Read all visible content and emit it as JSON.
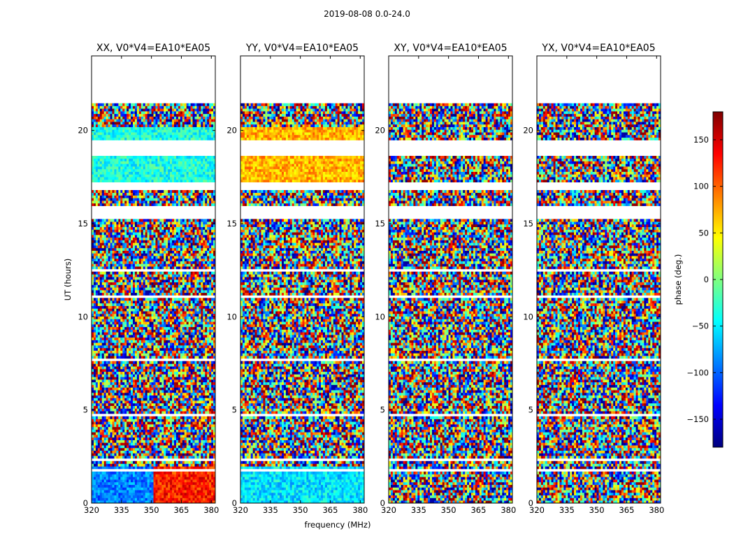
{
  "figure": {
    "suptitle": "2019-08-08 0.0-24.0"
  },
  "chart_data": {
    "type": "heatmap",
    "xlabel": "frequency (MHz)",
    "ylabel": "UT (hours)",
    "xlim": [
      320,
      382
    ],
    "ylim": [
      0,
      24
    ],
    "xticks": [
      320,
      335,
      350,
      365,
      380
    ],
    "yticks": [
      0,
      5,
      10,
      15,
      20
    ],
    "panels": [
      {
        "title": "XX, V0*V4=EA10*EA05"
      },
      {
        "title": "YY, V0*V4=EA10*EA05"
      },
      {
        "title": "XY, V0*V4=EA10*EA05"
      },
      {
        "title": "YX, V0*V4=EA10*EA05"
      }
    ],
    "data_gaps_hours": [
      [
        21.4,
        24.0
      ],
      [
        18.6,
        19.55
      ],
      [
        16.8,
        17.2
      ],
      [
        15.2,
        15.9
      ],
      [
        12.4,
        12.6
      ],
      [
        11.0,
        11.2
      ],
      [
        7.6,
        7.8
      ],
      [
        4.6,
        4.75
      ],
      [
        2.2,
        2.35
      ],
      [
        1.75,
        1.85
      ]
    ],
    "colorbar": {
      "label": "phase (deg.)",
      "range": [
        -180,
        180
      ],
      "ticks": [
        150,
        100,
        50,
        0,
        -50,
        -100,
        -150
      ],
      "tick_labels": [
        "150",
        "100",
        "50",
        "0",
        "−50",
        "−100",
        "−150"
      ],
      "colormap": "jet",
      "colors": [
        "#00007f",
        "#0000ff",
        "#007fff",
        "#00ffff",
        "#7fff7f",
        "#ffff00",
        "#ff7f00",
        "#ff0000",
        "#7f0000"
      ]
    }
  }
}
